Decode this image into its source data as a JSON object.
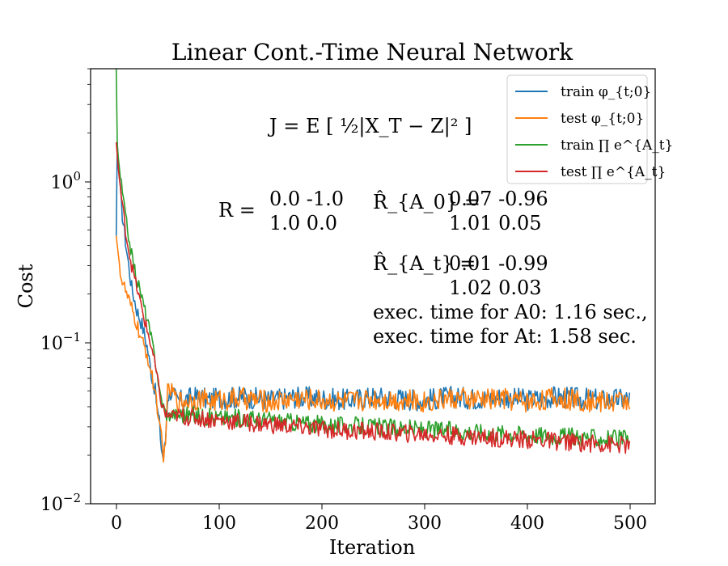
{
  "chart_data": {
    "type": "line",
    "title": "Linear Cont.-Time Neural Network",
    "xlabel": "Iteration",
    "ylabel": "Cost",
    "xlim": [
      -25,
      525
    ],
    "ylim": [
      0.01,
      5.0
    ],
    "yscale": "log",
    "xticks": [
      "0",
      "100",
      "200",
      "300",
      "400",
      "500"
    ],
    "yticks": [
      "10^0",
      "10^-1",
      "10^-2"
    ],
    "legend_position": "top-right",
    "series": [
      {
        "name": "train φ_{t;0}",
        "color": "#1f77b4",
        "x": [
          0,
          1,
          2,
          5,
          10,
          15,
          20,
          25,
          30,
          35,
          38,
          40,
          42,
          44,
          46,
          48,
          50,
          55,
          60,
          70,
          80,
          90,
          100,
          125,
          150,
          175,
          200,
          225,
          250,
          275,
          300,
          325,
          350,
          375,
          400,
          425,
          450,
          475,
          500
        ],
        "y": [
          0.46,
          1.75,
          1.3,
          0.7,
          0.38,
          0.22,
          0.16,
          0.13,
          0.095,
          0.06,
          0.05,
          0.038,
          0.032,
          0.022,
          0.019,
          0.025,
          0.046,
          0.05,
          0.043,
          0.045,
          0.046,
          0.044,
          0.045,
          0.046,
          0.044,
          0.046,
          0.045,
          0.044,
          0.046,
          0.045,
          0.044,
          0.046,
          0.045,
          0.046,
          0.044,
          0.046,
          0.045,
          0.044,
          0.045
        ]
      },
      {
        "name": "test φ_{t;0}",
        "color": "#ff7f0e",
        "x": [
          0,
          2,
          5,
          10,
          15,
          20,
          25,
          30,
          35,
          38,
          40,
          42,
          44,
          46,
          48,
          50,
          55,
          60,
          70,
          80,
          90,
          100,
          125,
          150,
          175,
          200,
          225,
          250,
          275,
          300,
          325,
          350,
          375,
          400,
          425,
          450,
          475,
          500
        ],
        "y": [
          0.46,
          0.35,
          0.25,
          0.2,
          0.16,
          0.13,
          0.1,
          0.085,
          0.06,
          0.05,
          0.04,
          0.03,
          0.025,
          0.018,
          0.026,
          0.05,
          0.05,
          0.043,
          0.044,
          0.045,
          0.043,
          0.044,
          0.045,
          0.043,
          0.045,
          0.044,
          0.043,
          0.045,
          0.044,
          0.043,
          0.045,
          0.044,
          0.045,
          0.043,
          0.045,
          0.044,
          0.043,
          0.044
        ]
      },
      {
        "name": "train ∏ e^{A_t}",
        "color": "#2ca02c",
        "x": [
          0,
          1,
          2,
          5,
          10,
          15,
          20,
          25,
          30,
          35,
          40,
          42,
          45,
          48,
          50,
          55,
          60,
          80,
          100,
          125,
          150,
          175,
          200,
          250,
          300,
          350,
          400,
          450,
          500
        ],
        "y": [
          6.0,
          1.7,
          1.4,
          0.95,
          0.55,
          0.35,
          0.25,
          0.19,
          0.14,
          0.1,
          0.065,
          0.05,
          0.042,
          0.037,
          0.035,
          0.036,
          0.036,
          0.035,
          0.034,
          0.034,
          0.033,
          0.032,
          0.031,
          0.03,
          0.029,
          0.028,
          0.027,
          0.026,
          0.025
        ]
      },
      {
        "name": "test ∏ e^{A_t}",
        "color": "#d62728",
        "x": [
          0,
          2,
          5,
          10,
          15,
          20,
          25,
          30,
          35,
          40,
          42,
          45,
          48,
          50,
          55,
          60,
          80,
          100,
          125,
          150,
          175,
          200,
          250,
          300,
          350,
          400,
          450,
          500
        ],
        "y": [
          1.75,
          1.2,
          0.8,
          0.45,
          0.3,
          0.22,
          0.16,
          0.12,
          0.09,
          0.06,
          0.048,
          0.04,
          0.036,
          0.035,
          0.035,
          0.035,
          0.034,
          0.033,
          0.032,
          0.031,
          0.03,
          0.029,
          0.028,
          0.027,
          0.026,
          0.025,
          0.024,
          0.023
        ]
      }
    ],
    "annotations": {
      "objective": "J = E [ ½|X_T − Z|² ]",
      "R_label": "R =",
      "R_row1": "0.0 -1.0",
      "R_row2": "1.0 0.0",
      "RA0_label": "R̂_{A_0} =",
      "RA0_row1": "0.07 -0.96",
      "RA0_row2": "1.01 0.05",
      "RAt_label": "R̂_{A_t} =",
      "RAt_row1": "0.01 -0.99",
      "RAt_row2": "1.02 0.03",
      "time_A0": "exec. time for A0: 1.16 sec.,",
      "time_At": "exec. time for At: 1.58 sec."
    }
  }
}
